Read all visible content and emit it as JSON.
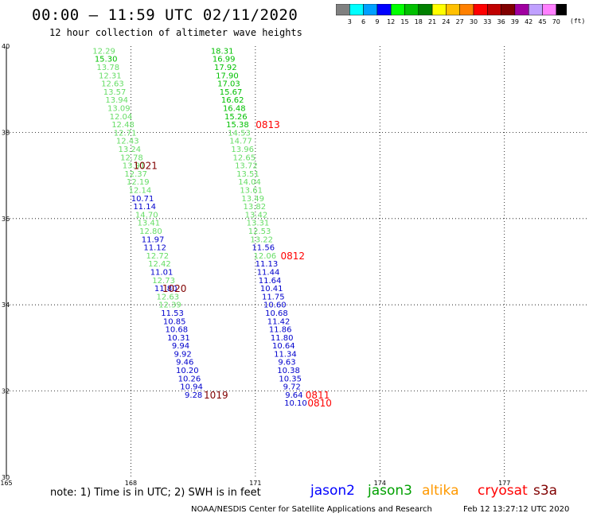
{
  "header": {
    "title": "00:00 – 11:59 UTC 02/11/2020",
    "subtitle": "12 hour collection of altimeter wave heights"
  },
  "colorbar": {
    "unit": "(ft)",
    "labels": [
      "3",
      "6",
      "9",
      "12",
      "15",
      "18",
      "21",
      "24",
      "27",
      "30",
      "33",
      "36",
      "39",
      "42",
      "45",
      "70"
    ],
    "colors": [
      "#808080",
      "#00ffff",
      "#00a0ff",
      "#0000ff",
      "#00ff00",
      "#00c000",
      "#008000",
      "#ffff00",
      "#ffc000",
      "#ff8000",
      "#ff0000",
      "#c00000",
      "#800000",
      "#a000a0",
      "#c0a0ff",
      "#ff80ff",
      "#000000"
    ]
  },
  "note": "note:  1) Time is in UTC;  2) SWH is in feet",
  "satellites": [
    {
      "name": "jason2",
      "color": "#0000ff"
    },
    {
      "name": "jason3",
      "color": "#00a000"
    },
    {
      "name": "altika",
      "color": "#ff9900"
    },
    {
      "name": "cryosat",
      "color": "#ff0000"
    },
    {
      "name": "s3a",
      "color": "#800000"
    }
  ],
  "footer": {
    "credit": "NOAA/NESDIS Center for Satellite Applications and Research",
    "timestamp": "Feb 12 13:27:12 UTC 2020"
  },
  "chart_data": {
    "type": "scatter",
    "xlim": [
      165,
      179
    ],
    "ylim": [
      30,
      40
    ],
    "x_ticks": [
      "165",
      "168",
      "171",
      "174",
      "177"
    ],
    "y_ticks": [
      "30",
      "32",
      "34",
      "36",
      "38",
      "40"
    ],
    "x_tick_values": [
      165,
      168,
      171,
      174,
      177
    ],
    "y_tick_values": [
      30,
      32,
      34,
      36,
      38,
      40
    ],
    "grid": true,
    "tracks": [
      {
        "points": [
          {
            "x": 167.35,
            "y": 39.9,
            "v": "12.29",
            "c": "#66dd66"
          },
          {
            "x": 167.4,
            "y": 39.71,
            "v": "15.30",
            "c": "#00c000"
          },
          {
            "x": 167.45,
            "y": 39.52,
            "v": "13.78",
            "c": "#66dd66"
          },
          {
            "x": 167.5,
            "y": 39.33,
            "v": "12.31",
            "c": "#66dd66"
          },
          {
            "x": 167.56,
            "y": 39.14,
            "v": "12.63",
            "c": "#66dd66"
          },
          {
            "x": 167.61,
            "y": 38.95,
            "v": "13.57",
            "c": "#66dd66"
          },
          {
            "x": 167.66,
            "y": 38.76,
            "v": "13.94",
            "c": "#66dd66"
          },
          {
            "x": 167.71,
            "y": 38.57,
            "v": "13.09",
            "c": "#66dd66"
          },
          {
            "x": 167.76,
            "y": 38.38,
            "v": "12.04",
            "c": "#66dd66"
          },
          {
            "x": 167.81,
            "y": 38.19,
            "v": "12.48",
            "c": "#66dd66"
          },
          {
            "x": 167.86,
            "y": 38.0,
            "v": "12.71",
            "c": "#66dd66"
          },
          {
            "x": 167.92,
            "y": 37.81,
            "v": "12.43",
            "c": "#66dd66"
          },
          {
            "x": 167.97,
            "y": 37.62,
            "v": "13.24",
            "c": "#66dd66"
          },
          {
            "x": 168.02,
            "y": 37.43,
            "v": "12.78",
            "c": "#66dd66"
          },
          {
            "x": 168.07,
            "y": 37.24,
            "v": "13.91",
            "c": "#66dd66"
          },
          {
            "x": 168.12,
            "y": 37.05,
            "v": "12.37",
            "c": "#66dd66"
          },
          {
            "x": 168.17,
            "y": 36.86,
            "v": "12.19",
            "c": "#66dd66"
          },
          {
            "x": 168.22,
            "y": 36.67,
            "v": "12.14",
            "c": "#66dd66"
          },
          {
            "x": 168.28,
            "y": 36.48,
            "v": "10.71",
            "c": "#0000cc"
          },
          {
            "x": 168.33,
            "y": 36.29,
            "v": "11.14",
            "c": "#0000cc"
          },
          {
            "x": 168.38,
            "y": 36.1,
            "v": "14.70",
            "c": "#66dd66"
          },
          {
            "x": 168.43,
            "y": 35.91,
            "v": "13.41",
            "c": "#66dd66"
          },
          {
            "x": 168.48,
            "y": 35.72,
            "v": "12.80",
            "c": "#66dd66"
          },
          {
            "x": 168.53,
            "y": 35.53,
            "v": "11.97",
            "c": "#0000cc"
          },
          {
            "x": 168.58,
            "y": 35.34,
            "v": "11.12",
            "c": "#0000cc"
          },
          {
            "x": 168.64,
            "y": 35.15,
            "v": "12.72",
            "c": "#66dd66"
          },
          {
            "x": 168.69,
            "y": 34.96,
            "v": "12.42",
            "c": "#66dd66"
          },
          {
            "x": 168.74,
            "y": 34.77,
            "v": "11.01",
            "c": "#0000cc"
          },
          {
            "x": 168.79,
            "y": 34.58,
            "v": "12.73",
            "c": "#66dd66"
          },
          {
            "x": 168.84,
            "y": 34.39,
            "v": "11.80",
            "c": "#0000cc"
          },
          {
            "x": 168.89,
            "y": 34.2,
            "v": "12.63",
            "c": "#66dd66"
          },
          {
            "x": 168.94,
            "y": 34.01,
            "v": "12.39",
            "c": "#66dd66"
          },
          {
            "x": 169.0,
            "y": 33.82,
            "v": "11.53",
            "c": "#0000cc"
          },
          {
            "x": 169.05,
            "y": 33.63,
            "v": "10.85",
            "c": "#0000cc"
          },
          {
            "x": 169.1,
            "y": 33.44,
            "v": "10.68",
            "c": "#0000cc"
          },
          {
            "x": 169.15,
            "y": 33.25,
            "v": "10.31",
            "c": "#0000cc"
          },
          {
            "x": 169.2,
            "y": 33.06,
            "v": "9.94",
            "c": "#0000cc"
          },
          {
            "x": 169.25,
            "y": 32.87,
            "v": "9.92",
            "c": "#0000cc"
          },
          {
            "x": 169.3,
            "y": 32.68,
            "v": "9.46",
            "c": "#0000cc"
          },
          {
            "x": 169.36,
            "y": 32.49,
            "v": "10.20",
            "c": "#0000cc"
          },
          {
            "x": 169.41,
            "y": 32.3,
            "v": "10.26",
            "c": "#0000cc"
          },
          {
            "x": 169.46,
            "y": 32.11,
            "v": "10.94",
            "c": "#0000cc"
          },
          {
            "x": 169.51,
            "y": 31.92,
            "v": "9.28",
            "c": "#0000cc"
          }
        ],
        "times": [
          {
            "label": "1021",
            "x": 168.35,
            "y": 37.24,
            "c": "#800000"
          },
          {
            "label": "1020",
            "x": 169.05,
            "y": 34.39,
            "c": "#800000"
          },
          {
            "label": "1019",
            "x": 170.05,
            "y": 31.92,
            "c": "#800000"
          }
        ]
      },
      {
        "points": [
          {
            "x": 170.2,
            "y": 39.9,
            "v": "18.31",
            "c": "#00c000"
          },
          {
            "x": 170.24,
            "y": 39.71,
            "v": "16.99",
            "c": "#00c000"
          },
          {
            "x": 170.28,
            "y": 39.52,
            "v": "17.92",
            "c": "#00c000"
          },
          {
            "x": 170.32,
            "y": 39.33,
            "v": "17.90",
            "c": "#00c000"
          },
          {
            "x": 170.36,
            "y": 39.14,
            "v": "17.03",
            "c": "#00c000"
          },
          {
            "x": 170.41,
            "y": 38.95,
            "v": "15.67",
            "c": "#00c000"
          },
          {
            "x": 170.45,
            "y": 38.76,
            "v": "16.62",
            "c": "#00c000"
          },
          {
            "x": 170.49,
            "y": 38.57,
            "v": "16.48",
            "c": "#00c000"
          },
          {
            "x": 170.53,
            "y": 38.38,
            "v": "15.26",
            "c": "#00c000"
          },
          {
            "x": 170.57,
            "y": 38.19,
            "v": "15.38",
            "c": "#00c000"
          },
          {
            "x": 170.61,
            "y": 38.0,
            "v": "14.53",
            "c": "#66dd66"
          },
          {
            "x": 170.65,
            "y": 37.81,
            "v": "14.77",
            "c": "#66dd66"
          },
          {
            "x": 170.69,
            "y": 37.62,
            "v": "13.96",
            "c": "#66dd66"
          },
          {
            "x": 170.73,
            "y": 37.43,
            "v": "12.65",
            "c": "#66dd66"
          },
          {
            "x": 170.78,
            "y": 37.24,
            "v": "13.72",
            "c": "#66dd66"
          },
          {
            "x": 170.82,
            "y": 37.05,
            "v": "13.51",
            "c": "#66dd66"
          },
          {
            "x": 170.86,
            "y": 36.86,
            "v": "14.04",
            "c": "#66dd66"
          },
          {
            "x": 170.9,
            "y": 36.67,
            "v": "13.61",
            "c": "#66dd66"
          },
          {
            "x": 170.94,
            "y": 36.48,
            "v": "13.49",
            "c": "#66dd66"
          },
          {
            "x": 170.98,
            "y": 36.29,
            "v": "13.82",
            "c": "#66dd66"
          },
          {
            "x": 171.02,
            "y": 36.1,
            "v": "13.42",
            "c": "#66dd66"
          },
          {
            "x": 171.06,
            "y": 35.91,
            "v": "13.31",
            "c": "#66dd66"
          },
          {
            "x": 171.1,
            "y": 35.72,
            "v": "12.53",
            "c": "#66dd66"
          },
          {
            "x": 171.15,
            "y": 35.53,
            "v": "13.22",
            "c": "#66dd66"
          },
          {
            "x": 171.19,
            "y": 35.34,
            "v": "11.56",
            "c": "#0000cc"
          },
          {
            "x": 171.23,
            "y": 35.15,
            "v": "12.06",
            "c": "#66dd66"
          },
          {
            "x": 171.27,
            "y": 34.96,
            "v": "11.13",
            "c": "#0000cc"
          },
          {
            "x": 171.31,
            "y": 34.77,
            "v": "11.44",
            "c": "#0000cc"
          },
          {
            "x": 171.35,
            "y": 34.58,
            "v": "11.64",
            "c": "#0000cc"
          },
          {
            "x": 171.39,
            "y": 34.39,
            "v": "10.41",
            "c": "#0000cc"
          },
          {
            "x": 171.43,
            "y": 34.2,
            "v": "11.75",
            "c": "#0000cc"
          },
          {
            "x": 171.47,
            "y": 34.01,
            "v": "10.60",
            "c": "#0000cc"
          },
          {
            "x": 171.51,
            "y": 33.82,
            "v": "10.68",
            "c": "#0000cc"
          },
          {
            "x": 171.56,
            "y": 33.63,
            "v": "11.42",
            "c": "#0000cc"
          },
          {
            "x": 171.6,
            "y": 33.44,
            "v": "11.86",
            "c": "#0000cc"
          },
          {
            "x": 171.64,
            "y": 33.25,
            "v": "11.80",
            "c": "#0000cc"
          },
          {
            "x": 171.68,
            "y": 33.06,
            "v": "10.64",
            "c": "#0000cc"
          },
          {
            "x": 171.72,
            "y": 32.87,
            "v": "11.34",
            "c": "#0000cc"
          },
          {
            "x": 171.76,
            "y": 32.68,
            "v": "9.63",
            "c": "#0000cc"
          },
          {
            "x": 171.8,
            "y": 32.49,
            "v": "10.38",
            "c": "#0000cc"
          },
          {
            "x": 171.84,
            "y": 32.3,
            "v": "10.35",
            "c": "#0000cc"
          },
          {
            "x": 171.88,
            "y": 32.11,
            "v": "9.72",
            "c": "#0000cc"
          },
          {
            "x": 171.93,
            "y": 31.92,
            "v": "9.64",
            "c": "#0000cc"
          },
          {
            "x": 171.97,
            "y": 31.73,
            "v": "10.10",
            "c": "#0000cc"
          }
        ],
        "times": [
          {
            "label": "0813",
            "x": 171.3,
            "y": 38.19,
            "c": "#ff0000"
          },
          {
            "label": "0812",
            "x": 171.9,
            "y": 35.15,
            "c": "#ff0000"
          },
          {
            "label": "0811",
            "x": 172.5,
            "y": 31.92,
            "c": "#ff0000"
          },
          {
            "label": "0810",
            "x": 172.55,
            "y": 31.73,
            "c": "#ff0000"
          }
        ]
      }
    ]
  }
}
